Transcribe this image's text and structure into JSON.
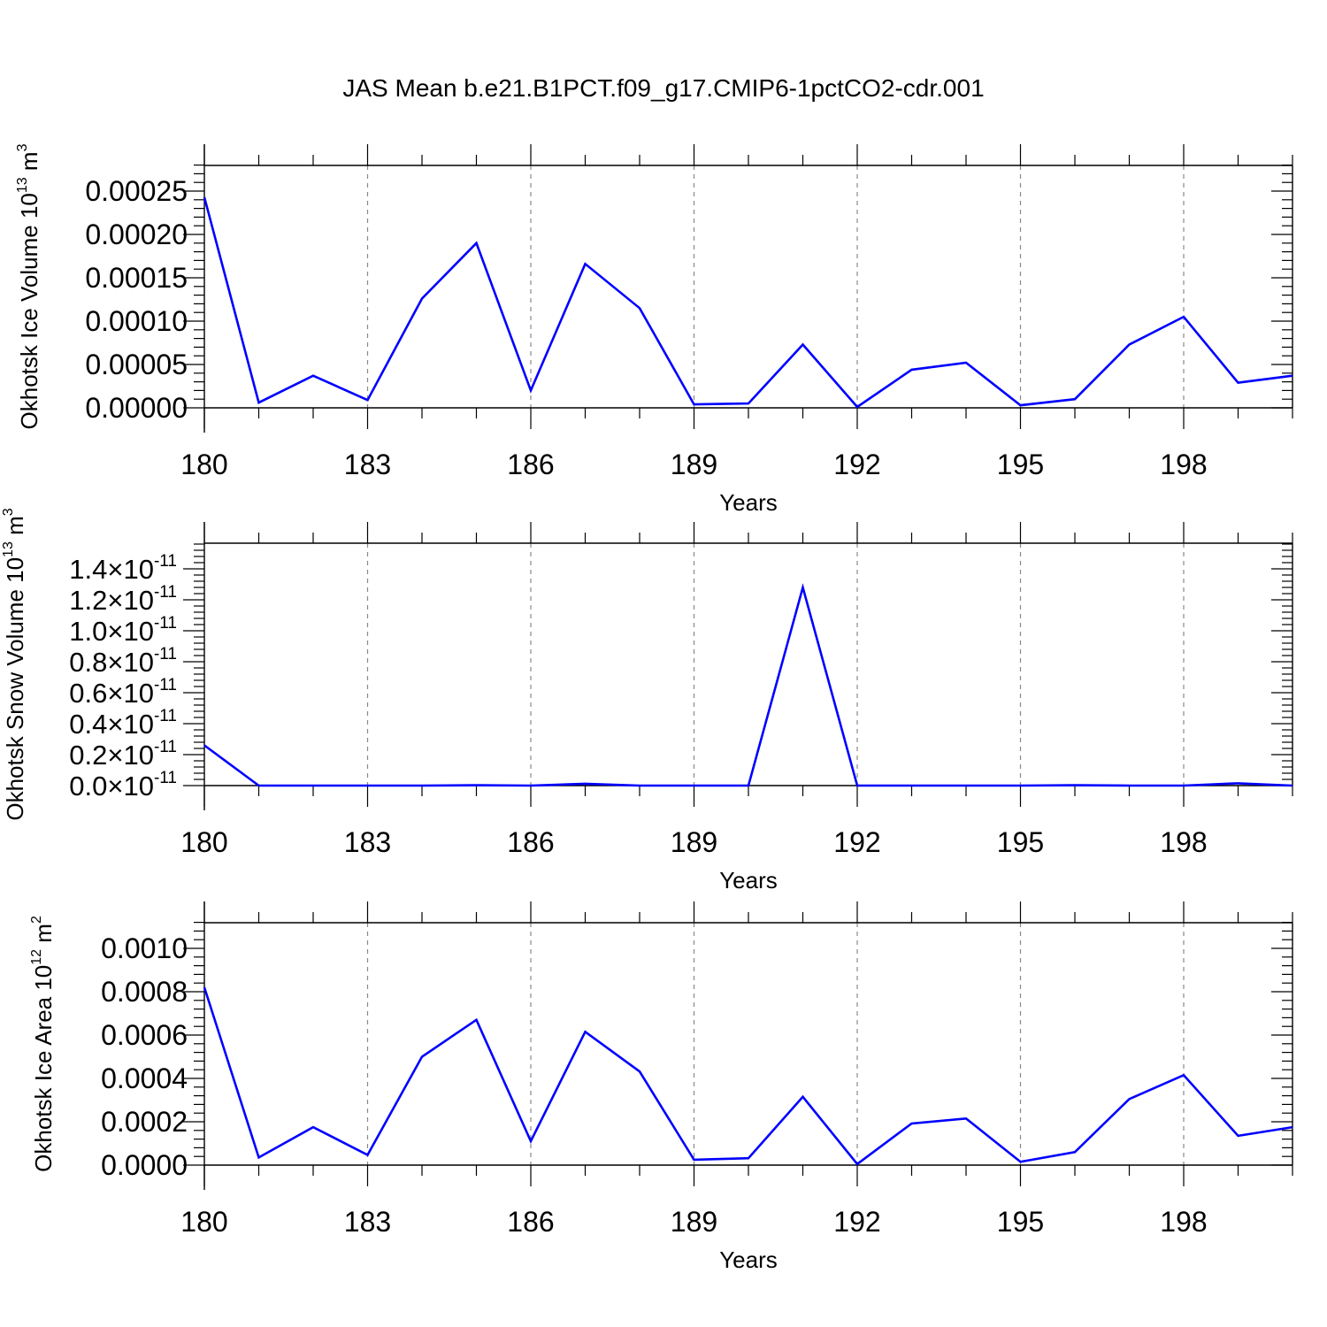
{
  "title": "JAS Mean b.e21.B1PCT.f09_g17.CMIP6-1pctCO2-cdr.001",
  "line_color": "#0000ff",
  "chart_data": [
    {
      "type": "line",
      "ylabel": "Okhotsk Ice Volume 10",
      "ylabel_exp": "13",
      "ylabel_unit": " m",
      "ylabel_unit_exp": "3",
      "xlabel": "Years",
      "xlim": [
        180,
        200
      ],
      "ylim": [
        0,
        0.00028
      ],
      "xticks": [
        "180",
        "183",
        "186",
        "189",
        "192",
        "195",
        "198"
      ],
      "yticks": [
        "0.00000",
        "0.00005",
        "0.00010",
        "0.00015",
        "0.00020",
        "0.00025"
      ],
      "x": [
        180,
        181,
        182,
        183,
        184,
        185,
        186,
        187,
        188,
        189,
        190,
        191,
        192,
        193,
        194,
        195,
        196,
        197,
        198,
        199,
        200
      ],
      "series": [
        {
          "values": [
            0.000243,
            6e-06,
            3.7e-05,
            9e-06,
            0.000126,
            0.00019,
            2e-05,
            0.000166,
            0.000115,
            4e-06,
            5e-06,
            7.3e-05,
            1e-06,
            4.4e-05,
            5.2e-05,
            3e-06,
            1e-05,
            7.3e-05,
            0.000105,
            2.9e-05,
            3.7e-05
          ]
        }
      ]
    },
    {
      "type": "line",
      "ylabel": "Okhotsk Snow Volume 10",
      "ylabel_exp": "13",
      "ylabel_unit": " m",
      "ylabel_unit_exp": "3",
      "xlabel": "Years",
      "xlim": [
        180,
        200
      ],
      "ylim": [
        0,
        1.5e-11
      ],
      "xticks": [
        "180",
        "183",
        "186",
        "189",
        "192",
        "195",
        "198"
      ],
      "yticks": [
        "0.0",
        "0.2",
        "0.4",
        "0.6",
        "0.8",
        "1.0",
        "1.2",
        "1.4"
      ],
      "ytick_suffix": "×10",
      "ytick_exp": "-11",
      "x": [
        180,
        181,
        182,
        183,
        184,
        185,
        186,
        187,
        188,
        189,
        190,
        191,
        192,
        193,
        194,
        195,
        196,
        197,
        198,
        199,
        200
      ],
      "series": [
        {
          "values": [
            2.6e-12,
            0.0,
            0.0,
            0.0,
            0.0,
            2e-14,
            0.0,
            1.2e-13,
            0.0,
            0.0,
            0.0,
            1.28e-11,
            0.0,
            0.0,
            0.0,
            0.0,
            2e-14,
            0.0,
            0.0,
            1.5e-13,
            0.0
          ]
        }
      ]
    },
    {
      "type": "line",
      "ylabel": "Okhotsk Ice Area 10",
      "ylabel_exp": "12",
      "ylabel_unit": " m",
      "ylabel_unit_exp": "2",
      "xlabel": "Years",
      "xlim": [
        180,
        200
      ],
      "ylim": [
        0,
        0.001
      ],
      "xticks": [
        "180",
        "183",
        "186",
        "189",
        "192",
        "195",
        "198"
      ],
      "yticks": [
        "0.0000",
        "0.0002",
        "0.0004",
        "0.0006",
        "0.0008",
        "0.0010"
      ],
      "x": [
        180,
        181,
        182,
        183,
        184,
        185,
        186,
        187,
        188,
        189,
        190,
        191,
        192,
        193,
        194,
        195,
        196,
        197,
        198,
        199,
        200
      ],
      "series": [
        {
          "values": [
            0.00082,
            3.5e-05,
            0.000175,
            4.7e-05,
            0.0005,
            0.00067,
            0.00011,
            0.000615,
            0.000432,
            2.5e-05,
            3.2e-05,
            0.000315,
            5e-06,
            0.000192,
            0.000215,
            1.5e-05,
            6e-05,
            0.000305,
            0.000415,
            0.000135,
            0.000175
          ]
        }
      ]
    }
  ]
}
